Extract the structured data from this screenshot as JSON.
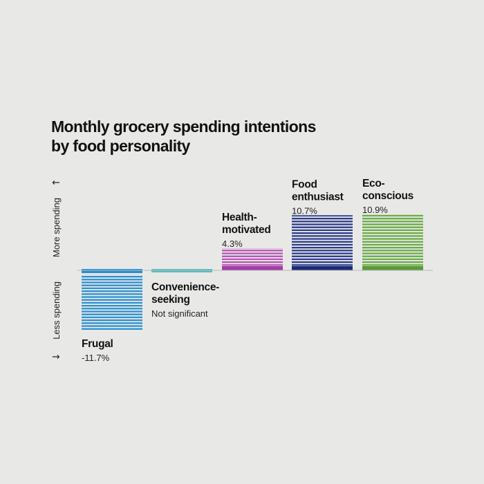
{
  "chart_data": {
    "type": "bar",
    "title_lines": [
      "Monthly grocery spending intentions",
      "by food personality"
    ],
    "direction_labels": {
      "up": "More spending",
      "down": "Less spending"
    },
    "arrows": {
      "up": "↑",
      "down": "↓"
    },
    "categories": [
      {
        "name_lines": [
          "Frugal"
        ],
        "value": -11.7,
        "value_label": "-11.7%",
        "color": "#2a8fd0",
        "accent": "#2a8fd0"
      },
      {
        "name_lines": [
          "Convenience-",
          "seeking"
        ],
        "value": 0,
        "value_label": "Not significant",
        "color": "#5bbcc0",
        "accent": "#5bbcc0"
      },
      {
        "name_lines": [
          "Health-",
          "motivated"
        ],
        "value": 4.3,
        "value_label": "4.3%",
        "color": "#b452b4",
        "accent": "#a23ea4"
      },
      {
        "name_lines": [
          "Food",
          "enthusiast"
        ],
        "value": 10.7,
        "value_label": "10.7%",
        "color": "#2b3a8a",
        "accent": "#1e2a72"
      },
      {
        "name_lines": [
          "Eco-",
          "conscious"
        ],
        "value": 10.9,
        "value_label": "10.9%",
        "color": "#6aab45",
        "accent": "#5a9a38"
      }
    ],
    "baseline": 0,
    "ylim": [
      -12.5,
      11.5
    ],
    "grid": false,
    "legend": "none"
  }
}
